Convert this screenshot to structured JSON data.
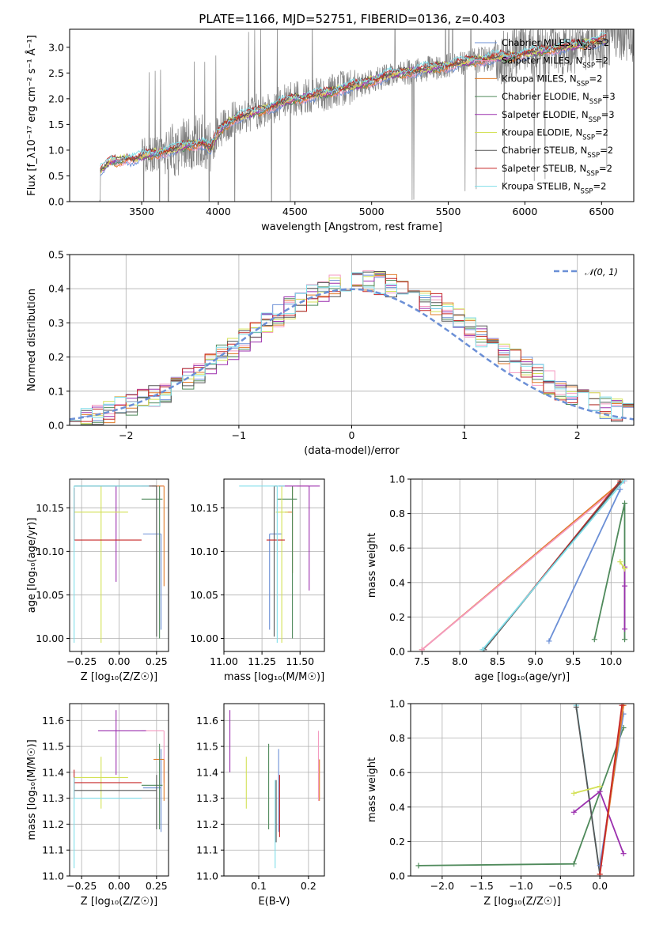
{
  "title": "PLATE=1166, MJD=52751, FIBERID=0136, z=0.403",
  "colors": {
    "Chabrier MILES": "#6b8fd6",
    "Salpeter MILES": "#f49ac1",
    "Kroupa MILES": "#e07b28",
    "Chabrier ELODIE": "#4f8a5b",
    "Salpeter ELODIE": "#9b2fae",
    "Kroupa ELODIE": "#d4e157",
    "Chabrier STELIB": "#555555",
    "Salpeter STELIB": "#c62828",
    "Kroupa STELIB": "#80deea",
    "data": "#808080",
    "normal": "#6b8fd6"
  },
  "chart_data": [
    {
      "type": "line",
      "panel": "spectrum",
      "xlabel": "wavelength [Angstrom, rest frame]",
      "ylabel": "Flux [f_λ10⁻¹⁷ erg cm⁻² s⁻¹ Å⁻¹]",
      "xlim": [
        3030,
        6710
      ],
      "ylim": [
        0,
        3.35
      ],
      "xticks": [
        3500,
        4000,
        4500,
        5000,
        5500,
        6000,
        6500
      ],
      "yticks": [
        0.0,
        0.5,
        1.0,
        1.5,
        2.0,
        2.5,
        3.0
      ],
      "legend_position": "top-right",
      "legend": [
        {
          "model": "Chabrier MILES",
          "n_ssp": "2"
        },
        {
          "model": "Salpeter MILES",
          "n_ssp": "2"
        },
        {
          "model": "Kroupa MILES",
          "n_ssp": "2"
        },
        {
          "model": "Chabrier ELODIE",
          "n_ssp": "3"
        },
        {
          "model": "Salpeter ELODIE",
          "n_ssp": "3"
        },
        {
          "model": "Kroupa ELODIE",
          "n_ssp": "2"
        },
        {
          "model": "Chabrier STELIB",
          "n_ssp": "2"
        },
        {
          "model": "Salpeter STELIB",
          "n_ssp": "2"
        },
        {
          "model": "Kroupa STELIB",
          "n_ssp": "2"
        }
      ],
      "model_continuum": {
        "x": [
          3230,
          3250,
          3300,
          3350,
          3400,
          3450,
          3500,
          3600,
          3700,
          3800,
          3900,
          3950,
          4000,
          4050,
          4100,
          4200,
          4300,
          4400,
          4500,
          4600,
          4700,
          4800,
          4900,
          5000,
          5100,
          5200,
          5300,
          5400,
          5500,
          5600,
          5700,
          5800,
          5900,
          6000,
          6100,
          6200,
          6300,
          6400,
          6530
        ],
        "y": [
          0.6,
          0.65,
          0.8,
          0.78,
          0.85,
          0.82,
          0.88,
          0.95,
          1.0,
          1.1,
          1.15,
          1.0,
          1.35,
          1.5,
          1.6,
          1.7,
          1.8,
          1.9,
          2.0,
          2.05,
          2.1,
          2.2,
          2.25,
          2.35,
          2.45,
          2.5,
          2.55,
          2.6,
          2.65,
          2.7,
          2.75,
          2.8,
          2.82,
          2.88,
          2.92,
          2.98,
          3.02,
          3.08,
          3.15
        ]
      }
    },
    {
      "type": "line",
      "panel": "residuals",
      "xlabel": "(data-model)/error",
      "ylabel": "Normed distribution",
      "xlim": [
        -2.5,
        2.5
      ],
      "ylim": [
        0,
        0.5
      ],
      "xticks": [
        -2,
        -1,
        0,
        1,
        2
      ],
      "yticks": [
        0.0,
        0.1,
        0.2,
        0.3,
        0.4,
        0.5
      ],
      "legend_position": "top-right",
      "curve_label": "𝒩(0, 1)",
      "bin_width": 0.1,
      "bin_start": -2.5
    },
    {
      "type": "scatter",
      "panel": "age-vs-Z",
      "xlabel": "Z [log₁₀(Z/Z☉)]",
      "ylabel": "age  [log₁₀(age/yr)]",
      "xlim": [
        -0.33,
        0.33
      ],
      "ylim": [
        9.985,
        10.183
      ],
      "xticks": [
        -0.25,
        0.0,
        0.25
      ],
      "yticks": [
        10.0,
        10.05,
        10.1,
        10.15
      ],
      "points": [
        {
          "model": "Chabrier MILES",
          "x": 0.28,
          "y": 10.12,
          "xerr": [
            0.12,
            0.0
          ],
          "yerr": [
            0.11,
            0.0
          ]
        },
        {
          "model": "Salpeter MILES",
          "x": 0.3,
          "y": 10.175,
          "xerr": [
            0.15,
            0.0
          ],
          "yerr": [
            0.0,
            0.0
          ]
        },
        {
          "model": "Kroupa MILES",
          "x": 0.3,
          "y": 10.175,
          "xerr": [
            0.08,
            0.0
          ],
          "yerr": [
            0.115,
            0.0
          ]
        },
        {
          "model": "Chabrier ELODIE",
          "x": 0.27,
          "y": 10.16,
          "xerr": [
            0.12,
            0.02
          ],
          "yerr": [
            0.16,
            0.015
          ]
        },
        {
          "model": "Salpeter ELODIE",
          "x": -0.02,
          "y": 10.12,
          "xerr": [
            0.0,
            0.0
          ],
          "yerr": [
            0.055,
            0.055
          ]
        },
        {
          "model": "Kroupa ELODIE",
          "x": -0.12,
          "y": 10.145,
          "xerr": [
            0.18,
            0.18
          ],
          "yerr": [
            0.15,
            0.03
          ]
        },
        {
          "model": "Chabrier STELIB",
          "x": 0.25,
          "y": 10.175,
          "xerr": [
            0.55,
            0.0
          ],
          "yerr": [
            0.173,
            0.0
          ]
        },
        {
          "model": "Salpeter STELIB",
          "x": -0.3,
          "y": 10.113,
          "xerr": [
            0.0,
            0.45
          ],
          "yerr": [
            0.0,
            0.06
          ]
        },
        {
          "model": "Kroupa STELIB",
          "x": -0.3,
          "y": 10.175,
          "xerr": [
            0.0,
            0.5
          ],
          "yerr": [
            0.18,
            0.0
          ]
        }
      ]
    },
    {
      "type": "scatter",
      "panel": "age-vs-mass",
      "xlabel": "mass [log₁₀(M/M☉)]",
      "ylabel": "",
      "xlim": [
        11.0,
        11.66
      ],
      "ylim": [
        9.985,
        10.183
      ],
      "xticks": [
        11.0,
        11.25,
        11.5
      ],
      "yticks": [
        10.0,
        10.05,
        10.1,
        10.15
      ],
      "points": [
        {
          "model": "Chabrier MILES",
          "x": 11.3,
          "y": 10.12,
          "xerr": [
            0.0,
            0.08
          ],
          "yerr": [
            0.11,
            0.0
          ]
        },
        {
          "model": "Salpeter MILES",
          "x": 11.5,
          "y": 10.175,
          "xerr": [
            0.02,
            0.06
          ],
          "yerr": [
            0.0,
            0.0
          ]
        },
        {
          "model": "Kroupa MILES",
          "x": 11.45,
          "y": 10.145,
          "xerr": [
            0.05,
            0.0
          ],
          "yerr": [
            0.07,
            0.03
          ]
        },
        {
          "model": "Chabrier ELODIE",
          "x": 11.45,
          "y": 10.16,
          "xerr": [
            0.1,
            0.03
          ],
          "yerr": [
            0.16,
            0.015
          ]
        },
        {
          "model": "Salpeter ELODIE",
          "x": 11.56,
          "y": 10.175,
          "xerr": [
            0.2,
            0.07
          ],
          "yerr": [
            0.12,
            0.0
          ]
        },
        {
          "model": "Kroupa ELODIE",
          "x": 11.38,
          "y": 10.145,
          "xerr": [
            0.04,
            0.04
          ],
          "yerr": [
            0.15,
            0.03
          ]
        },
        {
          "model": "Chabrier STELIB",
          "x": 11.33,
          "y": 10.175,
          "xerr": [
            0.0,
            0.02
          ],
          "yerr": [
            0.173,
            0.0
          ]
        },
        {
          "model": "Salpeter STELIB",
          "x": 11.32,
          "y": 10.113,
          "xerr": [
            0.04,
            0.08
          ],
          "yerr": [
            0.0,
            0.0
          ]
        },
        {
          "model": "Kroupa STELIB",
          "x": 11.35,
          "y": 10.175,
          "xerr": [
            0.25,
            0.05
          ],
          "yerr": [
            0.18,
            0.0
          ]
        }
      ]
    },
    {
      "type": "line",
      "panel": "weight-vs-age",
      "xlabel": "age  [log₁₀(age/yr)]",
      "ylabel": "mass weight",
      "xlim": [
        7.35,
        10.3
      ],
      "ylim": [
        0,
        1.0
      ],
      "xticks": [
        7.5,
        8.0,
        8.5,
        9.0,
        9.5,
        10.0
      ],
      "yticks": [
        0.0,
        0.2,
        0.4,
        0.6,
        0.8,
        1.0
      ],
      "series": [
        {
          "model": "Kroupa MILES",
          "x": [
            7.5,
            10.15
          ],
          "y": [
            0.01,
            0.99
          ]
        },
        {
          "model": "Salpeter MILES",
          "x": [
            7.5,
            10.18
          ],
          "y": [
            0.01,
            0.99
          ]
        },
        {
          "model": "Salpeter STELIB",
          "x": [
            8.32,
            10.12
          ],
          "y": [
            0.01,
            0.99
          ]
        },
        {
          "model": "Chabrier STELIB",
          "x": [
            8.32,
            10.12
          ],
          "y": [
            0.01,
            0.98
          ]
        },
        {
          "model": "Kroupa STELIB",
          "x": [
            8.3,
            10.17
          ],
          "y": [
            0.01,
            0.99
          ]
        },
        {
          "model": "Chabrier MILES",
          "x": [
            9.18,
            10.12
          ],
          "y": [
            0.06,
            0.94
          ]
        },
        {
          "model": "Chabrier ELODIE",
          "x": [
            9.78,
            10.18,
            10.18
          ],
          "y": [
            0.07,
            0.86,
            0.07
          ]
        },
        {
          "model": "Salpeter ELODIE",
          "x": [
            10.18,
            10.18,
            10.18
          ],
          "y": [
            0.13,
            0.38,
            0.49
          ]
        },
        {
          "model": "Kroupa ELODIE",
          "x": [
            10.12,
            10.18
          ],
          "y": [
            0.52,
            0.48
          ]
        }
      ]
    },
    {
      "type": "scatter",
      "panel": "mass-vs-Z",
      "xlabel": "Z [log₁₀(Z/Z☉)]",
      "ylabel": "mass [log₁₀(M/M☉)]",
      "xlim": [
        -0.33,
        0.33
      ],
      "ylim": [
        11.0,
        11.665
      ],
      "xticks": [
        -0.25,
        0.0,
        0.25
      ],
      "yticks": [
        11.0,
        11.1,
        11.2,
        11.3,
        11.4,
        11.5,
        11.6
      ],
      "points": [
        {
          "model": "Chabrier MILES",
          "x": 0.28,
          "y": 11.34,
          "xerr": [
            0.12,
            0.0
          ],
          "yerr": [
            0.17,
            0.15
          ]
        },
        {
          "model": "Salpeter MILES",
          "x": 0.3,
          "y": 11.56,
          "xerr": [
            0.15,
            0.0
          ],
          "yerr": [
            0.2,
            0.0
          ]
        },
        {
          "model": "Kroupa MILES",
          "x": 0.3,
          "y": 11.45,
          "xerr": [
            0.07,
            0.0
          ],
          "yerr": [
            0.16,
            0.0
          ]
        },
        {
          "model": "Chabrier ELODIE",
          "x": 0.27,
          "y": 11.35,
          "xerr": [
            0.12,
            0.02
          ],
          "yerr": [
            0.17,
            0.16
          ]
        },
        {
          "model": "Salpeter ELODIE",
          "x": -0.02,
          "y": 11.56,
          "xerr": [
            0.12,
            0.2
          ],
          "yerr": [
            0.17,
            0.08
          ]
        },
        {
          "model": "Kroupa ELODIE",
          "x": -0.12,
          "y": 11.38,
          "xerr": [
            0.18,
            0.18
          ],
          "yerr": [
            0.12,
            0.08
          ]
        },
        {
          "model": "Chabrier STELIB",
          "x": 0.25,
          "y": 11.33,
          "xerr": [
            0.55,
            0.0
          ],
          "yerr": [
            0.15,
            0.06
          ]
        },
        {
          "model": "Salpeter STELIB",
          "x": -0.3,
          "y": 11.36,
          "xerr": [
            0.0,
            0.45
          ],
          "yerr": [
            0.06,
            0.05
          ]
        },
        {
          "model": "Kroupa STELIB",
          "x": -0.3,
          "y": 11.3,
          "xerr": [
            0.0,
            0.45
          ],
          "yerr": [
            0.27,
            0.08
          ]
        }
      ]
    },
    {
      "type": "scatter",
      "panel": "mass-vs-EBV",
      "xlabel": "E(B-V)",
      "ylabel": "",
      "xlim": [
        0.03,
        0.232
      ],
      "ylim": [
        11.0,
        11.665
      ],
      "xticks": [
        0.1,
        0.2
      ],
      "yticks": [
        11.0,
        11.1,
        11.2,
        11.3,
        11.4,
        11.5,
        11.6
      ],
      "points": [
        {
          "model": "Chabrier MILES",
          "x": 0.14,
          "y": 11.34,
          "yerr": [
            0.17,
            0.15
          ]
        },
        {
          "model": "Salpeter MILES",
          "x": 0.22,
          "y": 11.46,
          "yerr": [
            0.17,
            0.1
          ]
        },
        {
          "model": "Kroupa MILES",
          "x": 0.222,
          "y": 11.37,
          "yerr": [
            0.08,
            0.08
          ]
        },
        {
          "model": "Chabrier ELODIE",
          "x": 0.12,
          "y": 11.35,
          "yerr": [
            0.17,
            0.16
          ]
        },
        {
          "model": "Salpeter ELODIE",
          "x": 0.042,
          "y": 11.52,
          "yerr": [
            0.12,
            0.12
          ]
        },
        {
          "model": "Kroupa ELODIE",
          "x": 0.075,
          "y": 11.38,
          "yerr": [
            0.12,
            0.08
          ]
        },
        {
          "model": "Chabrier STELIB",
          "x": 0.135,
          "y": 11.28,
          "yerr": [
            0.15,
            0.09
          ]
        },
        {
          "model": "Salpeter STELIB",
          "x": 0.142,
          "y": 11.27,
          "yerr": [
            0.12,
            0.12
          ]
        },
        {
          "model": "Kroupa STELIB",
          "x": 0.133,
          "y": 11.2,
          "yerr": [
            0.17,
            0.17
          ]
        }
      ]
    },
    {
      "type": "line",
      "panel": "weight-vs-Z",
      "xlabel": "Z [log₁₀(Z/Z☉)]",
      "ylabel": "mass weight",
      "xlim": [
        -2.4,
        0.43
      ],
      "ylim": [
        0,
        1.0
      ],
      "xticks": [
        -2.0,
        -1.5,
        -1.0,
        -0.5,
        0.0
      ],
      "yticks": [
        0.0,
        0.2,
        0.4,
        0.6,
        0.8,
        1.0
      ],
      "series": [
        {
          "model": "Chabrier ELODIE",
          "x": [
            -2.3,
            -0.33,
            0.3
          ],
          "y": [
            0.06,
            0.07,
            0.86
          ]
        },
        {
          "model": "Kroupa STELIB",
          "x": [
            -0.3,
            0.0
          ],
          "y": [
            0.99,
            0.01
          ]
        },
        {
          "model": "Chabrier STELIB",
          "x": [
            -0.3,
            0.0
          ],
          "y": [
            0.98,
            0.01
          ]
        },
        {
          "model": "Kroupa ELODIE",
          "x": [
            -0.33,
            0.0
          ],
          "y": [
            0.48,
            0.52
          ]
        },
        {
          "model": "Salpeter ELODIE",
          "x": [
            -0.33,
            0.0,
            0.3
          ],
          "y": [
            0.37,
            0.49,
            0.13
          ]
        },
        {
          "model": "Chabrier MILES",
          "x": [
            0.0,
            0.3
          ],
          "y": [
            0.06,
            0.94
          ]
        },
        {
          "model": "Salpeter MILES",
          "x": [
            0.0,
            0.3
          ],
          "y": [
            0.01,
            0.99
          ]
        },
        {
          "model": "Kroupa MILES",
          "x": [
            0.0,
            0.3
          ],
          "y": [
            0.01,
            0.99
          ]
        },
        {
          "model": "Salpeter STELIB",
          "x": [
            0.0,
            0.28
          ],
          "y": [
            0.01,
            0.99
          ]
        }
      ]
    }
  ]
}
